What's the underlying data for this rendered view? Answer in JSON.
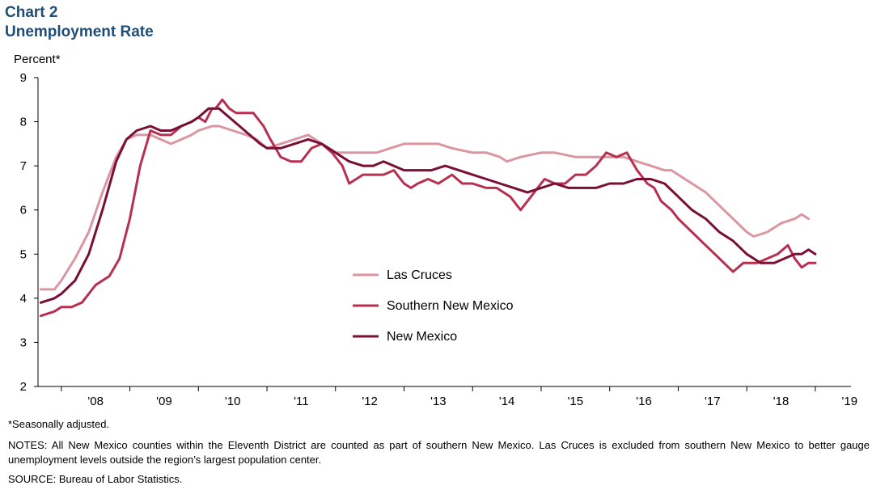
{
  "header": {
    "title": "Chart 2",
    "subtitle": "Unemployment  Rate"
  },
  "footer": {
    "footnote": "*Seasonally adjusted.",
    "notes": "NOTES: All New Mexico counties within the Eleventh District are counted as part of southern New Mexico. Las Cruces is excluded from southern New Mexico to better gauge unemployment levels outside the region’s largest population center.",
    "source": "SOURCE:  Bureau of Labor Statistics."
  },
  "chart_data": {
    "type": "line",
    "title": "Unemployment  Rate",
    "ylabel": "Percent*",
    "xlabel": "",
    "ylim": [
      2,
      9
    ],
    "xlim": [
      2007.66,
      2019.52
    ],
    "yticks": [
      2,
      3,
      4,
      5,
      6,
      7,
      8,
      9
    ],
    "xticklabels": [
      "'08",
      "'09",
      "'10",
      "'11",
      "'12",
      "'13",
      "'14",
      "'15",
      "'16",
      "'17",
      "'18",
      "'19"
    ],
    "grid": false,
    "legend_position": "center-left",
    "series": [
      {
        "name": "Las Cruces",
        "color": "#dc96a2",
        "x": [
          2007.7,
          2007.9,
          2008.0,
          2008.2,
          2008.4,
          2008.6,
          2008.8,
          2008.95,
          2009.1,
          2009.3,
          2009.45,
          2009.6,
          2009.75,
          2009.9,
          2010.0,
          2010.2,
          2010.3,
          2010.5,
          2010.7,
          2010.85,
          2011.0,
          2011.2,
          2011.4,
          2011.6,
          2011.8,
          2012.0,
          2012.3,
          2012.6,
          2012.8,
          2013.0,
          2013.3,
          2013.5,
          2013.7,
          2014.0,
          2014.2,
          2014.4,
          2014.5,
          2014.7,
          2015.0,
          2015.2,
          2015.5,
          2015.8,
          2016.0,
          2016.2,
          2016.4,
          2016.6,
          2016.8,
          2016.9,
          2017.0,
          2017.2,
          2017.4,
          2017.6,
          2017.8,
          2018.0,
          2018.1,
          2018.3,
          2018.5,
          2018.7,
          2018.8,
          2018.9
        ],
        "values": [
          4.2,
          4.2,
          4.4,
          4.9,
          5.5,
          6.4,
          7.2,
          7.6,
          7.7,
          7.7,
          7.6,
          7.5,
          7.6,
          7.7,
          7.8,
          7.9,
          7.9,
          7.8,
          7.7,
          7.6,
          7.4,
          7.5,
          7.6,
          7.7,
          7.5,
          7.3,
          7.3,
          7.3,
          7.4,
          7.5,
          7.5,
          7.5,
          7.4,
          7.3,
          7.3,
          7.2,
          7.1,
          7.2,
          7.3,
          7.3,
          7.2,
          7.2,
          7.2,
          7.2,
          7.1,
          7.0,
          6.9,
          6.9,
          6.8,
          6.6,
          6.4,
          6.1,
          5.8,
          5.5,
          5.4,
          5.5,
          5.7,
          5.8,
          5.9,
          5.8
        ]
      },
      {
        "name": "Southern New Mexico",
        "color": "#b8304f",
        "x": [
          2007.7,
          2007.9,
          2008.0,
          2008.15,
          2008.3,
          2008.5,
          2008.7,
          2008.85,
          2009.0,
          2009.15,
          2009.3,
          2009.45,
          2009.6,
          2009.75,
          2009.9,
          2010.0,
          2010.1,
          2010.2,
          2010.25,
          2010.35,
          2010.45,
          2010.55,
          2010.65,
          2010.8,
          2010.95,
          2011.05,
          2011.2,
          2011.35,
          2011.5,
          2011.65,
          2011.8,
          2011.95,
          2012.1,
          2012.2,
          2012.4,
          2012.55,
          2012.7,
          2012.85,
          2013.0,
          2013.1,
          2013.2,
          2013.35,
          2013.5,
          2013.7,
          2013.85,
          2014.0,
          2014.2,
          2014.35,
          2014.55,
          2014.7,
          2014.85,
          2014.95,
          2015.05,
          2015.2,
          2015.35,
          2015.5,
          2015.65,
          2015.8,
          2015.95,
          2016.1,
          2016.25,
          2016.4,
          2016.55,
          2016.65,
          2016.75,
          2016.9,
          2017.0,
          2017.2,
          2017.4,
          2017.6,
          2017.8,
          2017.95,
          2018.05,
          2018.15,
          2018.3,
          2018.45,
          2018.6,
          2018.7,
          2018.8,
          2018.9,
          2019.0
        ],
        "values": [
          3.6,
          3.7,
          3.8,
          3.8,
          3.9,
          4.3,
          4.5,
          4.9,
          5.8,
          7.0,
          7.8,
          7.7,
          7.7,
          7.9,
          8.0,
          8.1,
          8.0,
          8.3,
          8.3,
          8.5,
          8.3,
          8.2,
          8.2,
          8.2,
          7.9,
          7.6,
          7.2,
          7.1,
          7.1,
          7.4,
          7.5,
          7.3,
          7.0,
          6.6,
          6.8,
          6.8,
          6.8,
          6.9,
          6.6,
          6.5,
          6.6,
          6.7,
          6.6,
          6.8,
          6.6,
          6.6,
          6.5,
          6.5,
          6.3,
          6.0,
          6.3,
          6.5,
          6.7,
          6.6,
          6.6,
          6.8,
          6.8,
          7.0,
          7.3,
          7.2,
          7.3,
          6.9,
          6.6,
          6.5,
          6.2,
          6.0,
          5.8,
          5.5,
          5.2,
          4.9,
          4.6,
          4.8,
          4.8,
          4.8,
          4.9,
          5.0,
          5.2,
          4.9,
          4.7,
          4.8,
          4.8
        ]
      },
      {
        "name": "New Mexico",
        "color": "#7a0f35",
        "x": [
          2007.7,
          2007.9,
          2008.0,
          2008.2,
          2008.4,
          2008.6,
          2008.8,
          2008.95,
          2009.1,
          2009.3,
          2009.45,
          2009.6,
          2009.75,
          2009.9,
          2010.0,
          2010.15,
          2010.3,
          2010.45,
          2010.6,
          2010.75,
          2010.9,
          2011.0,
          2011.2,
          2011.4,
          2011.6,
          2011.8,
          2012.0,
          2012.2,
          2012.4,
          2012.55,
          2012.7,
          2012.85,
          2013.0,
          2013.2,
          2013.4,
          2013.6,
          2013.8,
          2014.0,
          2014.2,
          2014.4,
          2014.6,
          2014.8,
          2015.0,
          2015.2,
          2015.4,
          2015.6,
          2015.8,
          2016.0,
          2016.2,
          2016.4,
          2016.6,
          2016.8,
          2017.0,
          2017.2,
          2017.4,
          2017.6,
          2017.8,
          2018.0,
          2018.1,
          2018.2,
          2018.3,
          2018.4,
          2018.55,
          2018.7,
          2018.8,
          2018.9,
          2019.0
        ],
        "values": [
          3.9,
          4.0,
          4.1,
          4.4,
          5.0,
          6.0,
          7.1,
          7.6,
          7.8,
          7.9,
          7.8,
          7.8,
          7.9,
          8.0,
          8.1,
          8.3,
          8.3,
          8.1,
          7.9,
          7.7,
          7.5,
          7.4,
          7.4,
          7.5,
          7.6,
          7.5,
          7.3,
          7.1,
          7.0,
          7.0,
          7.1,
          7.0,
          6.9,
          6.9,
          6.9,
          7.0,
          6.9,
          6.8,
          6.7,
          6.6,
          6.5,
          6.4,
          6.5,
          6.6,
          6.5,
          6.5,
          6.5,
          6.6,
          6.6,
          6.7,
          6.7,
          6.6,
          6.3,
          6.0,
          5.8,
          5.5,
          5.3,
          5.0,
          4.9,
          4.8,
          4.8,
          4.8,
          4.9,
          5.0,
          5.0,
          5.1,
          5.0
        ]
      }
    ]
  }
}
